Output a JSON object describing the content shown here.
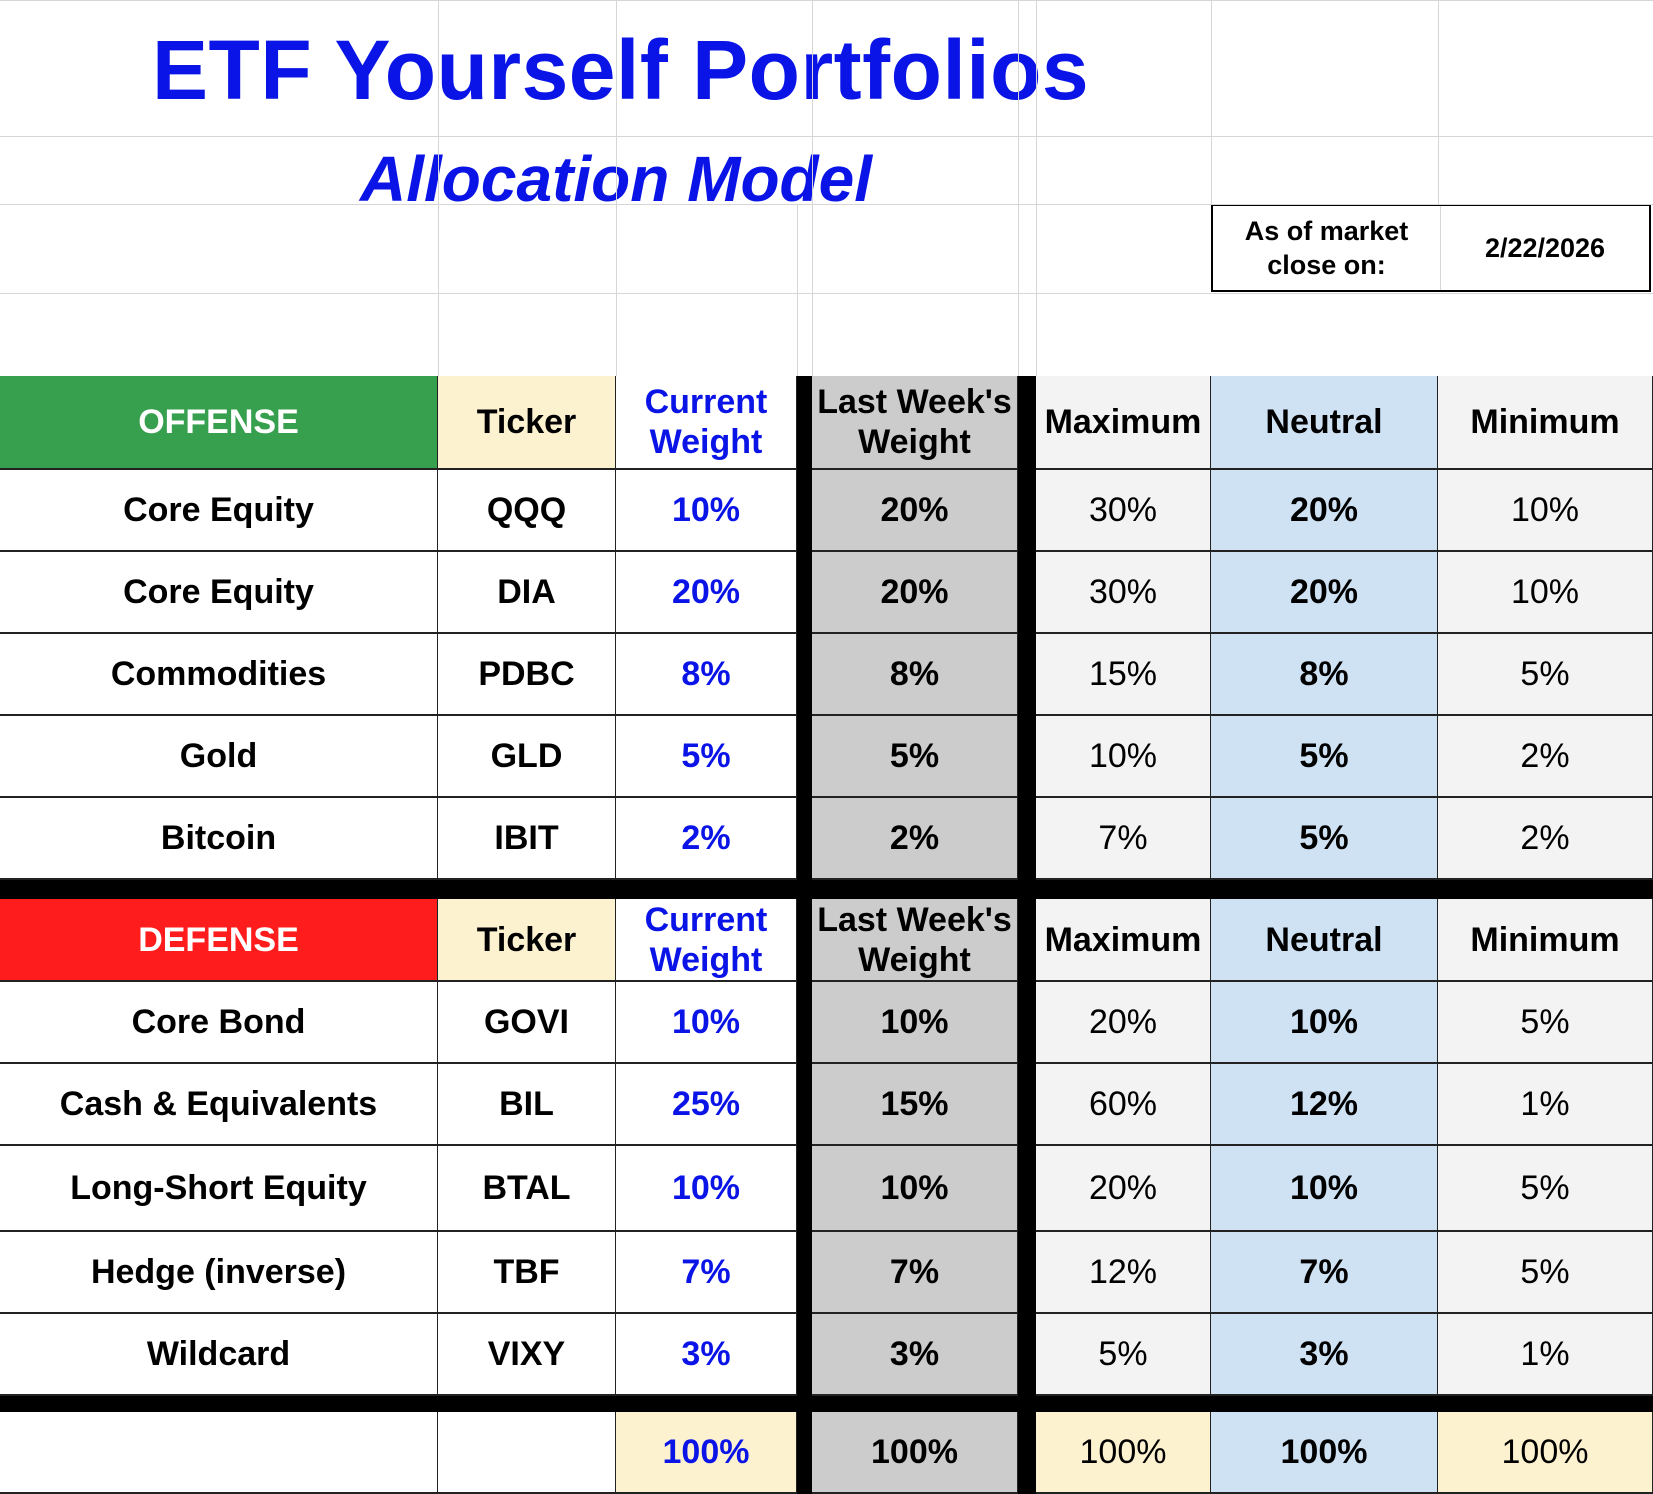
{
  "header": {
    "title": "ETF Yourself Portfolios",
    "subtitle": "Allocation Model",
    "as_of_label": "As of market close on:",
    "as_of_date": "2/22/2026"
  },
  "colors": {
    "title": "#0a14e6",
    "offense_bg": "#37a04f",
    "defense_bg": "#ff1c1c",
    "ticker_bg": "#fdf2d0",
    "last_week_bg": "#cccccc",
    "max_min_bg": "#f3f3f3",
    "neutral_bg": "#cfe2f3",
    "total_bg": "#fdf2d0"
  },
  "offense": {
    "headers": [
      "OFFENSE",
      "Ticker",
      "Current Weight",
      "Last Week's Weight",
      "Maximum",
      "Neutral",
      "Minimum"
    ],
    "rows": [
      {
        "category": "Core Equity",
        "ticker": "QQQ",
        "current": "10%",
        "last_week": "20%",
        "maximum": "30%",
        "neutral": "20%",
        "minimum": "10%"
      },
      {
        "category": "Core Equity",
        "ticker": "DIA",
        "current": "20%",
        "last_week": "20%",
        "maximum": "30%",
        "neutral": "20%",
        "minimum": "10%"
      },
      {
        "category": "Commodities",
        "ticker": "PDBC",
        "current": "8%",
        "last_week": "8%",
        "maximum": "15%",
        "neutral": "8%",
        "minimum": "5%"
      },
      {
        "category": "Gold",
        "ticker": "GLD",
        "current": "5%",
        "last_week": "5%",
        "maximum": "10%",
        "neutral": "5%",
        "minimum": "2%"
      },
      {
        "category": "Bitcoin",
        "ticker": "IBIT",
        "current": "2%",
        "last_week": "2%",
        "maximum": "7%",
        "neutral": "5%",
        "minimum": "2%"
      }
    ]
  },
  "defense": {
    "headers": [
      "DEFENSE",
      "Ticker",
      "Current Weight",
      "Last Week's Weight",
      "Maximum",
      "Neutral",
      "Minimum"
    ],
    "rows": [
      {
        "category": "Core Bond",
        "ticker": "GOVI",
        "current": "10%",
        "last_week": "10%",
        "maximum": "20%",
        "neutral": "10%",
        "minimum": "5%"
      },
      {
        "category": "Cash & Equivalents",
        "ticker": "BIL",
        "current": "25%",
        "last_week": "15%",
        "maximum": "60%",
        "neutral": "12%",
        "minimum": "1%"
      },
      {
        "category": "Long-Short Equity",
        "ticker": "BTAL",
        "current": "10%",
        "last_week": "10%",
        "maximum": "20%",
        "neutral": "10%",
        "minimum": "5%"
      },
      {
        "category": "Hedge (inverse)",
        "ticker": "TBF",
        "current": "7%",
        "last_week": "7%",
        "maximum": "12%",
        "neutral": "7%",
        "minimum": "5%"
      },
      {
        "category": "Wildcard",
        "ticker": "VIXY",
        "current": "3%",
        "last_week": "3%",
        "maximum": "5%",
        "neutral": "3%",
        "minimum": "1%"
      }
    ]
  },
  "totals": {
    "current": "100%",
    "last_week": "100%",
    "maximum": "100%",
    "neutral": "100%",
    "minimum": "100%"
  }
}
